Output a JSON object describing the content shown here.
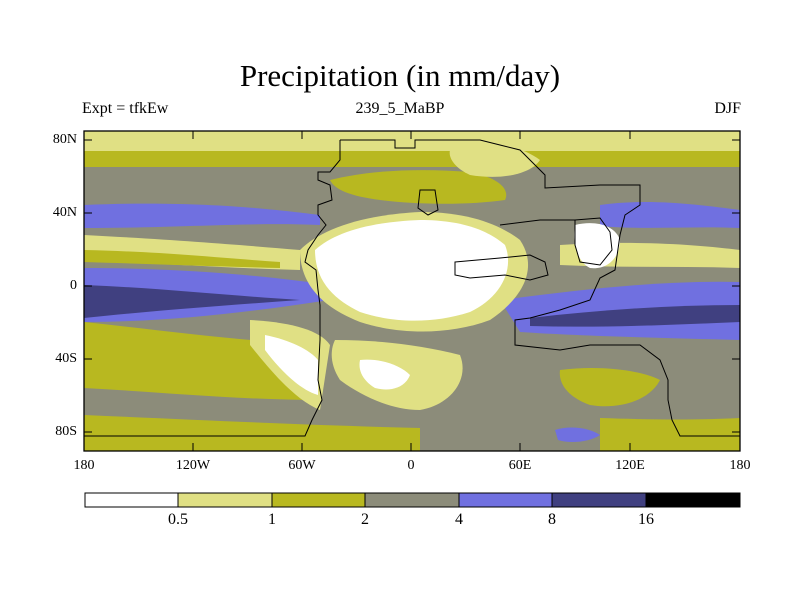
{
  "title": "Precipitation (in mm/day)",
  "subtitle_left": "Expt = tfkEw",
  "subtitle_center": "239_5_MaBP",
  "subtitle_right": "DJF",
  "lat_ticks": [
    "80N",
    "40N",
    "0",
    "40S",
    "80S"
  ],
  "lon_ticks": [
    "180",
    "120W",
    "60W",
    "0",
    "60E",
    "120E",
    "180"
  ],
  "colorbar": {
    "labels": [
      "0.5",
      "1",
      "2",
      "4",
      "8",
      "16"
    ],
    "colors": [
      "#ffffff",
      "#e0e084",
      "#b8b820",
      "#8c8c7a",
      "#7070e0",
      "#404080",
      "#000000"
    ]
  },
  "palette": {
    "white": "#ffffff",
    "pale_yellow": "#e0e084",
    "olive": "#b8b820",
    "gray": "#8c8c7a",
    "blue": "#7070e0",
    "dark_blue": "#404080"
  }
}
